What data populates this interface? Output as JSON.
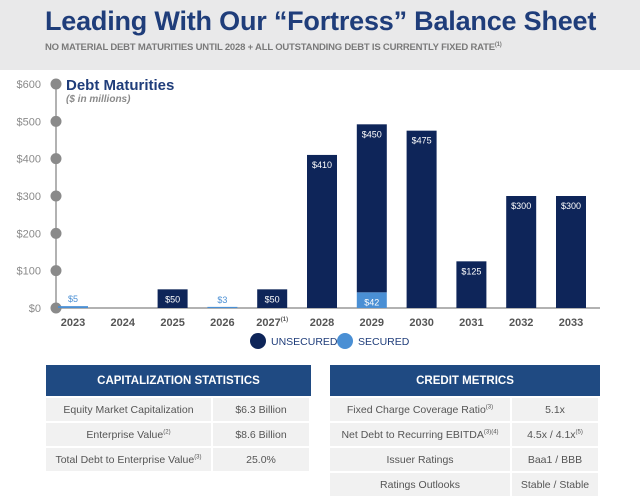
{
  "header": {
    "title": "Leading With Our “Fortress” Balance Sheet",
    "subtitle": "NO MATERIAL DEBT MATURITIES UNTIL 2028 + ALL OUTSTANDING DEBT IS CURRENTLY FIXED RATE",
    "subtitle_note": "(1)"
  },
  "chart_data": {
    "type": "bar",
    "stacked": true,
    "title": "Debt Maturities",
    "subtitle": "($ in millions)",
    "categories": [
      "2023",
      "2024",
      "2025",
      "2026",
      "2027",
      "2028",
      "2029",
      "2030",
      "2031",
      "2032",
      "2033"
    ],
    "category_notes": {
      "2027": "(1)"
    },
    "series": [
      {
        "name": "SECURED",
        "color": "#4a8fd4",
        "values": [
          5,
          0,
          0,
          3,
          0,
          0,
          42,
          0,
          0,
          0,
          0
        ]
      },
      {
        "name": "UNSECURED",
        "color": "#0e2559",
        "values": [
          0,
          0,
          50,
          0,
          50,
          410,
          450,
          475,
          125,
          300,
          300
        ]
      }
    ],
    "labels": [
      {
        "category": "2023",
        "text": "$5",
        "series": "SECURED"
      },
      {
        "category": "2025",
        "text": "$50",
        "series": "UNSECURED"
      },
      {
        "category": "2026",
        "text": "$3",
        "series": "SECURED"
      },
      {
        "category": "2027",
        "text": "$50",
        "series": "UNSECURED"
      },
      {
        "category": "2028",
        "text": "$410",
        "series": "UNSECURED"
      },
      {
        "category": "2029",
        "text": "$450",
        "series": "UNSECURED"
      },
      {
        "category": "2029",
        "text": "$42",
        "series": "SECURED"
      },
      {
        "category": "2030",
        "text": "$475",
        "series": "UNSECURED"
      },
      {
        "category": "2031",
        "text": "$125",
        "series": "UNSECURED"
      },
      {
        "category": "2032",
        "text": "$300",
        "series": "UNSECURED"
      },
      {
        "category": "2033",
        "text": "$300",
        "series": "UNSECURED"
      }
    ],
    "yticks": [
      "$0",
      "$100",
      "$200",
      "$300",
      "$400",
      "$500",
      "$600"
    ],
    "ylim": [
      0,
      600
    ],
    "legend": "bottom",
    "grid": false
  },
  "cap": {
    "header": "CAPITALIZATION STATISTICS",
    "rows": [
      {
        "label": "Equity Market Capitalization",
        "note": "",
        "value": "$6.3 Billion",
        "vnote": ""
      },
      {
        "label": "Enterprise Value",
        "note": "(2)",
        "value": "$8.6 Billion",
        "vnote": ""
      },
      {
        "label": "Total Debt to Enterprise Value",
        "note": "(3)",
        "value": "25.0%",
        "vnote": ""
      }
    ]
  },
  "credit": {
    "header": "CREDIT METRICS",
    "rows": [
      {
        "label": "Fixed Charge Coverage Ratio",
        "note": "(3)",
        "value": "5.1x",
        "vnote": ""
      },
      {
        "label": "Net Debt to Recurring EBITDA",
        "note": "(3)(4)",
        "value": "4.5x / 4.1x",
        "vnote": "(5)"
      },
      {
        "label": "Issuer Ratings",
        "note": "",
        "value": "Baa1 / BBB",
        "vnote": ""
      },
      {
        "label": "Ratings Outlooks",
        "note": "",
        "value": "Stable / Stable",
        "vnote": ""
      }
    ]
  }
}
